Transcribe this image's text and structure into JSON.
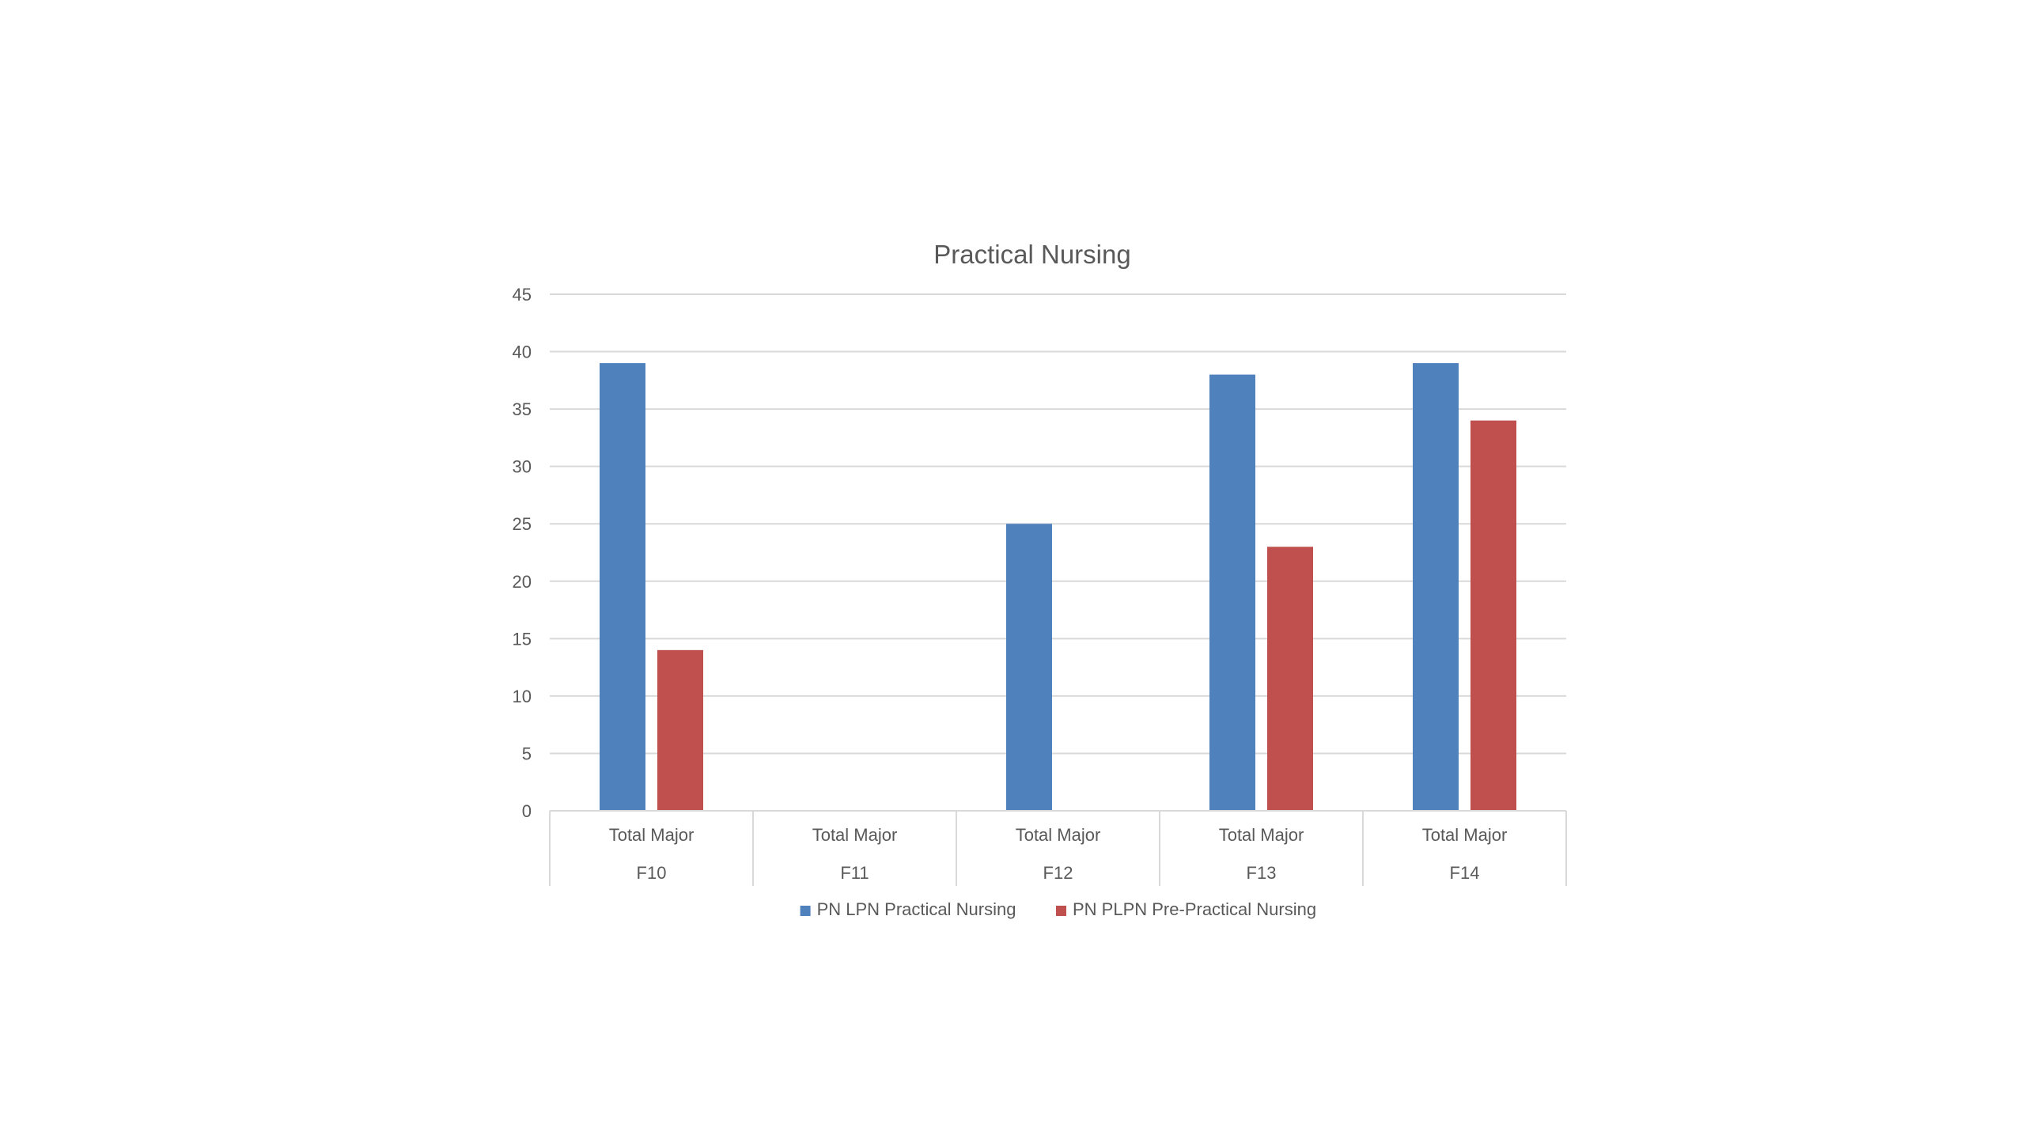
{
  "chart_data": {
    "type": "bar",
    "title": "Practical Nursing",
    "xlabel": "",
    "ylabel": "",
    "ylim": [
      0,
      45
    ],
    "yticks": [
      0,
      5,
      10,
      15,
      20,
      25,
      30,
      35,
      40,
      45
    ],
    "grid": true,
    "legend_position": "bottom",
    "categories": [
      {
        "label": "Total Major",
        "group": "F10"
      },
      {
        "label": "Total Major",
        "group": "F11"
      },
      {
        "label": "Total Major",
        "group": "F12"
      },
      {
        "label": "Total Major",
        "group": "F13"
      },
      {
        "label": "Total Major",
        "group": "F14"
      }
    ],
    "series": [
      {
        "name": "PN LPN Practical Nursing",
        "color": "#4f81bd",
        "values": [
          39,
          null,
          25,
          38,
          39
        ]
      },
      {
        "name": "PN PLPN Pre-Practical Nursing",
        "color": "#c0504d",
        "values": [
          14,
          null,
          null,
          23,
          34
        ]
      }
    ]
  },
  "colors": {
    "title_text": "#595959",
    "axis_text": "#595959",
    "gridline": "#d9d9d9",
    "background": "#ffffff"
  }
}
